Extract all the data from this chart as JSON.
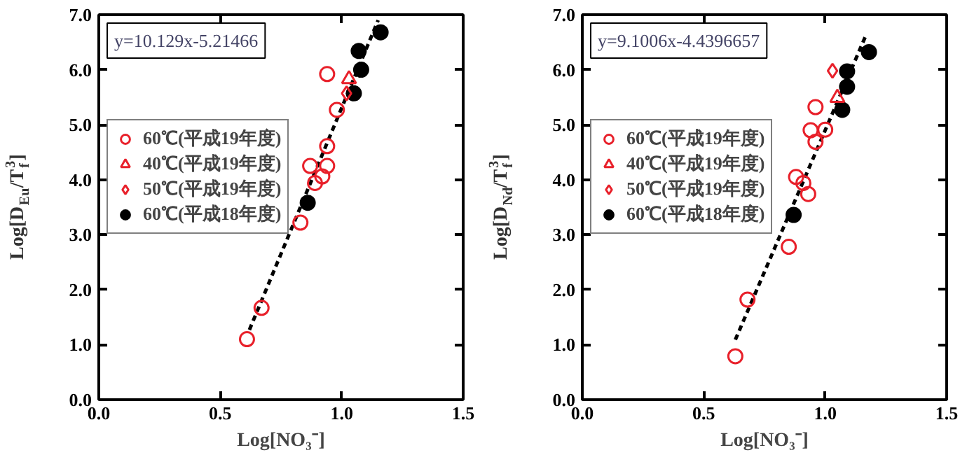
{
  "chart_data": [
    {
      "type": "scatter",
      "xlabel": "Log[NO₃⁻]",
      "ylabel": "Log[D$_{Eu}$/T$_{f}$$^{3}$]",
      "annotations": [
        "y=10.129x-5.21466"
      ],
      "xlim": [
        0,
        1.5
      ],
      "ylim": [
        0,
        7
      ],
      "xticks": [
        {
          "value": 0,
          "label": "0.0"
        },
        {
          "value": 0.5,
          "label": "0.5"
        },
        {
          "value": 1,
          "label": "1.0"
        },
        {
          "value": 1.5,
          "label": "1.5"
        }
      ],
      "yticks": [
        {
          "value": 0,
          "label": "0.0"
        },
        {
          "value": 1,
          "label": "1.0"
        },
        {
          "value": 2,
          "label": "2.0"
        },
        {
          "value": 3,
          "label": "3.0"
        },
        {
          "value": 4,
          "label": "4.0"
        },
        {
          "value": 5,
          "label": "5.0"
        },
        {
          "value": 6,
          "label": "6.0"
        },
        {
          "value": 7,
          "label": "7.0"
        }
      ],
      "grid": false,
      "legend": "top left",
      "series": [
        {
          "name": "60℃(平成19年度)",
          "color": "#e8202a",
          "marker": "circle",
          "x": [
            0.61,
            0.67,
            0.83,
            0.87,
            0.89,
            0.92,
            0.94,
            0.94,
            0.98,
            0.94
          ],
          "values": [
            1.1,
            1.67,
            3.22,
            4.25,
            3.94,
            4.06,
            4.25,
            4.61,
            5.27,
            5.92
          ]
        },
        {
          "name": "40℃(平成19年度)",
          "color": "#e8202a",
          "marker": "triangle",
          "x": [
            1.03
          ],
          "values": [
            5.83
          ]
        },
        {
          "name": "50℃(平成19年度)",
          "color": "#e8202a",
          "marker": "diamond",
          "x": [
            1.02
          ],
          "values": [
            5.57
          ]
        },
        {
          "name": "60℃(平成18年度)",
          "color": "#000000",
          "marker": "circle",
          "x": [
            0.86,
            1.05,
            1.08,
            1.07,
            1.16
          ],
          "values": [
            3.58,
            5.57,
            6.0,
            6.34,
            6.68
          ]
        },
        {
          "type": "line",
          "color": "#000000",
          "marker": "none",
          "line_style": "dashed",
          "x": [
            0.62,
            1.15
          ],
          "values": [
            1.27,
            6.9
          ]
        }
      ]
    },
    {
      "type": "scatter",
      "xlabel": "Log[NO₃⁻]",
      "ylabel": "Log[D$_{Nd}$/T$_{f}$$^{3}$]",
      "annotations": [
        "y=9.1006x-4.4396657"
      ],
      "xlim": [
        0,
        1.5
      ],
      "ylim": [
        0,
        7
      ],
      "xticks": [
        {
          "value": 0,
          "label": "0.0"
        },
        {
          "value": 0.5,
          "label": "0.5"
        },
        {
          "value": 1,
          "label": "1.0"
        },
        {
          "value": 1.5,
          "label": "1.5"
        }
      ],
      "yticks": [
        {
          "value": 0,
          "label": "0.0"
        },
        {
          "value": 1,
          "label": "1.0"
        },
        {
          "value": 2,
          "label": "2.0"
        },
        {
          "value": 3,
          "label": "3.0"
        },
        {
          "value": 4,
          "label": "4.0"
        },
        {
          "value": 5,
          "label": "5.0"
        },
        {
          "value": 6,
          "label": "6.0"
        },
        {
          "value": 7,
          "label": "7.0"
        }
      ],
      "grid": false,
      "legend": "top left",
      "series": [
        {
          "name": "60℃(平成19年度)",
          "color": "#e8202a",
          "marker": "circle",
          "x": [
            0.63,
            0.68,
            0.85,
            0.88,
            0.91,
            0.93,
            0.94,
            0.96,
            0.96,
            1.0
          ],
          "values": [
            0.79,
            1.82,
            2.78,
            4.05,
            3.94,
            3.74,
            4.9,
            4.69,
            5.32,
            4.91
          ]
        },
        {
          "name": "40℃(平成19年度)",
          "color": "#e8202a",
          "marker": "triangle",
          "x": [
            1.05
          ],
          "values": [
            5.49
          ]
        },
        {
          "name": "50℃(平成19年度)",
          "color": "#e8202a",
          "marker": "diamond",
          "x": [
            1.03
          ],
          "values": [
            5.98
          ]
        },
        {
          "name": "60℃(平成18年度)",
          "color": "#000000",
          "marker": "circle",
          "x": [
            0.87,
            1.07,
            1.09,
            1.09,
            1.18
          ],
          "values": [
            3.36,
            5.27,
            5.69,
            5.97,
            6.32
          ]
        },
        {
          "type": "line",
          "color": "#000000",
          "marker": "none",
          "line_style": "dashed",
          "x": [
            0.63,
            1.17
          ],
          "values": [
            1.09,
            6.65
          ]
        }
      ]
    }
  ]
}
